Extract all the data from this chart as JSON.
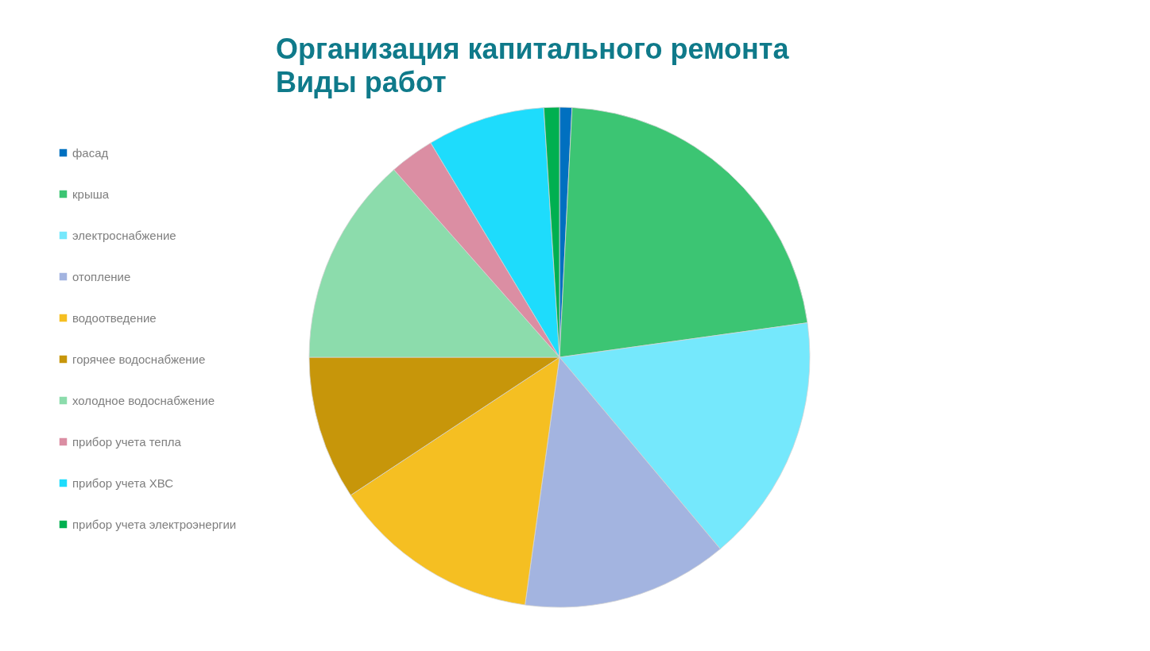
{
  "chart_data": {
    "type": "pie",
    "title": "Организация капитального ремонта",
    "subtitle": "Виды работ",
    "categories": [
      "фасад",
      "крыша",
      "электроснабжение",
      "отопление",
      "водоотведение",
      "горячее водоснабжение",
      "холодное водоснабжение",
      "прибор учета тепла",
      "прибор учета ХВС",
      "прибор учета электроэнергии"
    ],
    "values": [
      0.8,
      22.0,
      16.1,
      13.3,
      13.5,
      9.3,
      13.5,
      2.9,
      7.6,
      1.0
    ],
    "colors": [
      "#0070c0",
      "#3cc573",
      "#75e8fc",
      "#a3b4e0",
      "#f5bf22",
      "#c7960a",
      "#8cdcac",
      "#db8ea3",
      "#1edcfc",
      "#00b050"
    ],
    "legend": "left"
  }
}
